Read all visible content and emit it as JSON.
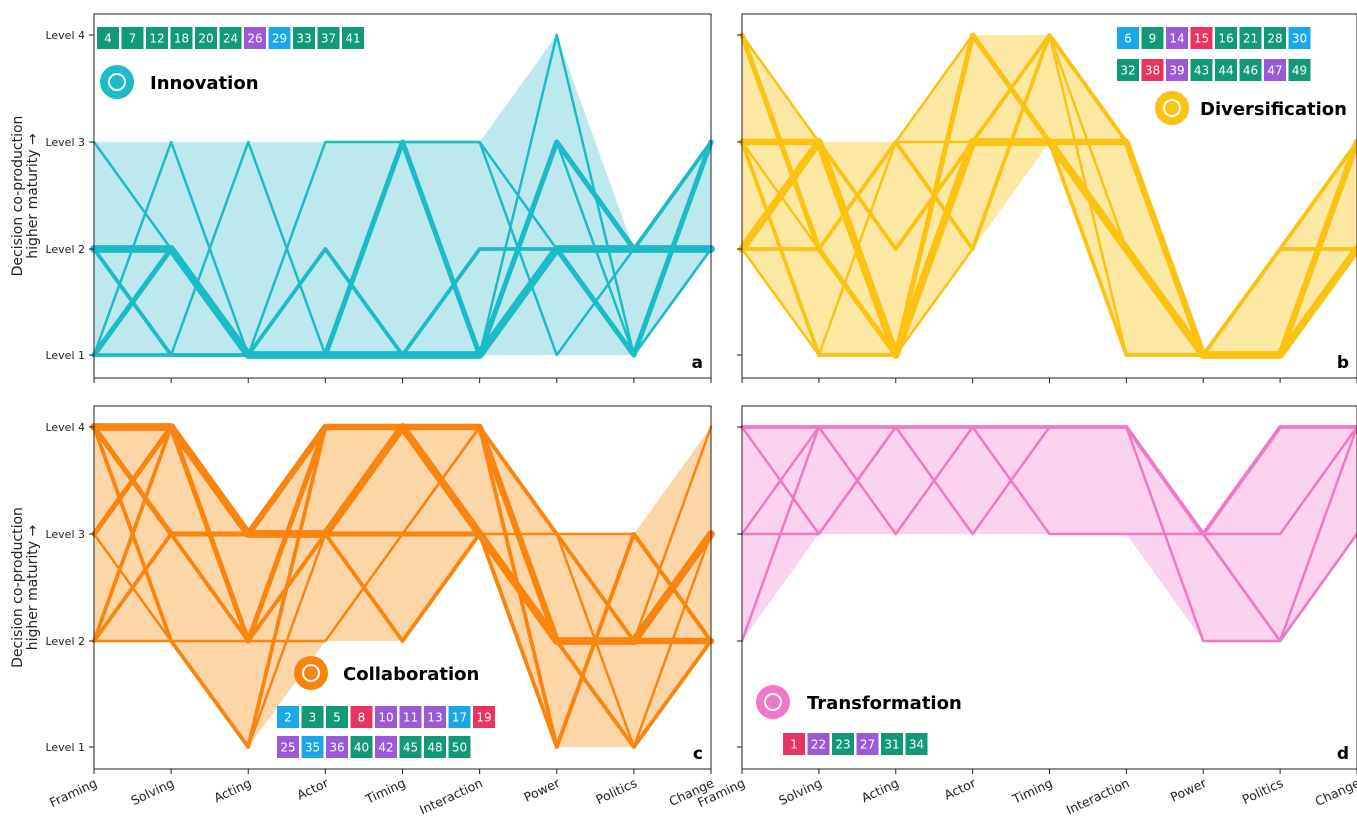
{
  "colors": {
    "teal": "#129a78",
    "purple": "#9b59d6",
    "blue": "#1aa7e8",
    "red": "#e8355f"
  },
  "chart_data": [
    {
      "type": "parallel-coordinates",
      "panel": "a",
      "name": "Innovation",
      "icon": "lightbulb-head-icon",
      "color": "#1bbbc8",
      "fill": "#bde9ee",
      "ylabel": "Decision co-production\nhigher maturity →",
      "ytick_labels": [
        "Level 1",
        "Level 2",
        "Level 3",
        "Level 4"
      ],
      "ylim": [
        0.9,
        4.1
      ],
      "categories": [
        "Framing",
        "Solving",
        "Acting",
        "Actor",
        "Timing",
        "Interaction",
        "Power",
        "Politics",
        "Change"
      ],
      "cases": [
        {
          "id": "4",
          "color": "teal"
        },
        {
          "id": "7",
          "color": "teal"
        },
        {
          "id": "12",
          "color": "teal"
        },
        {
          "id": "18",
          "color": "teal"
        },
        {
          "id": "20",
          "color": "teal"
        },
        {
          "id": "24",
          "color": "teal"
        },
        {
          "id": "26",
          "color": "purple"
        },
        {
          "id": "29",
          "color": "blue"
        },
        {
          "id": "33",
          "color": "teal"
        },
        {
          "id": "37",
          "color": "teal"
        },
        {
          "id": "41",
          "color": "teal"
        }
      ],
      "band": {
        "min": [
          1,
          1,
          1,
          1,
          1,
          1,
          1,
          1,
          2
        ],
        "max": [
          3,
          3,
          3,
          3,
          3,
          3,
          4,
          2,
          3
        ]
      },
      "series": [
        {
          "values": [
            2,
            2,
            1,
            1,
            1,
            1,
            2,
            2,
            2
          ],
          "weight": 5
        },
        {
          "values": [
            2,
            2,
            1,
            1,
            1,
            1,
            3,
            2,
            2
          ],
          "weight": 3
        },
        {
          "values": [
            1,
            2,
            1,
            1,
            3,
            1,
            2,
            1,
            3
          ],
          "weight": 3
        },
        {
          "values": [
            2,
            1,
            1,
            1,
            3,
            1,
            3,
            2,
            3
          ],
          "weight": 2
        },
        {
          "values": [
            1,
            1,
            1,
            2,
            1,
            2,
            2,
            2,
            2
          ],
          "weight": 2
        },
        {
          "values": [
            3,
            2,
            1,
            1,
            1,
            1,
            3,
            1,
            2
          ],
          "weight": 1
        },
        {
          "values": [
            1,
            3,
            1,
            1,
            3,
            3,
            2,
            2,
            2
          ],
          "weight": 1
        },
        {
          "values": [
            2,
            1,
            3,
            1,
            1,
            2,
            2,
            2,
            3
          ],
          "weight": 1
        },
        {
          "values": [
            2,
            2,
            1,
            3,
            3,
            3,
            1,
            2,
            2
          ],
          "weight": 1
        },
        {
          "values": [
            1,
            2,
            1,
            1,
            1,
            1,
            4,
            1,
            2
          ],
          "weight": 1
        },
        {
          "values": [
            1,
            1,
            1,
            1,
            1,
            1,
            3,
            2,
            3
          ],
          "weight": 1
        }
      ]
    },
    {
      "type": "parallel-coordinates",
      "panel": "b",
      "name": "Diversification",
      "icon": "diversify-arrows-icon",
      "color": "#fcc212",
      "fill": "#fde8a3",
      "ytick_labels": [
        "Level 1",
        "Level 2",
        "Level 3",
        "Level 4"
      ],
      "ylim": [
        0.9,
        4.1
      ],
      "categories": [
        "Framing",
        "Solving",
        "Acting",
        "Actor",
        "Timing",
        "Interaction",
        "Power",
        "Politics",
        "Change"
      ],
      "cases": [
        {
          "id": "6",
          "color": "blue"
        },
        {
          "id": "9",
          "color": "teal"
        },
        {
          "id": "14",
          "color": "purple"
        },
        {
          "id": "15",
          "color": "red"
        },
        {
          "id": "16",
          "color": "teal"
        },
        {
          "id": "21",
          "color": "teal"
        },
        {
          "id": "28",
          "color": "teal"
        },
        {
          "id": "30",
          "color": "blue"
        },
        {
          "id": "32",
          "color": "teal"
        },
        {
          "id": "38",
          "color": "red"
        },
        {
          "id": "39",
          "color": "purple"
        },
        {
          "id": "43",
          "color": "teal"
        },
        {
          "id": "44",
          "color": "teal"
        },
        {
          "id": "46",
          "color": "teal"
        },
        {
          "id": "47",
          "color": "purple"
        },
        {
          "id": "49",
          "color": "teal"
        }
      ],
      "band": {
        "min": [
          2,
          1,
          1,
          2,
          3,
          1,
          1,
          1,
          2
        ],
        "max": [
          4,
          3,
          3,
          4,
          4,
          3,
          1,
          2,
          3
        ]
      },
      "series": [
        {
          "values": [
            2,
            3,
            1,
            3,
            3,
            2,
            1,
            1,
            2
          ],
          "weight": 5
        },
        {
          "values": [
            3,
            3,
            1,
            3,
            3,
            3,
            1,
            1,
            3
          ],
          "weight": 4
        },
        {
          "values": [
            4,
            2,
            1,
            4,
            3,
            2,
            1,
            1,
            2
          ],
          "weight": 3
        },
        {
          "values": [
            2,
            3,
            2,
            3,
            4,
            3,
            1,
            2,
            3
          ],
          "weight": 2
        },
        {
          "values": [
            3,
            1,
            1,
            4,
            3,
            1,
            1,
            2,
            2
          ],
          "weight": 2
        },
        {
          "values": [
            2,
            2,
            3,
            2,
            4,
            3,
            1,
            1,
            3
          ],
          "weight": 2
        },
        {
          "values": [
            4,
            3,
            1,
            3,
            3,
            3,
            1,
            1,
            2
          ],
          "weight": 1
        },
        {
          "values": [
            3,
            2,
            3,
            4,
            3,
            2,
            1,
            1,
            3
          ],
          "weight": 1
        },
        {
          "values": [
            2,
            1,
            3,
            3,
            4,
            1,
            1,
            2,
            2
          ],
          "weight": 1
        },
        {
          "values": [
            3,
            3,
            1,
            2,
            4,
            2,
            1,
            1,
            3
          ],
          "weight": 1
        },
        {
          "values": [
            2,
            3,
            1,
            3,
            3,
            3,
            1,
            1,
            3
          ],
          "weight": 1
        }
      ]
    },
    {
      "type": "parallel-coordinates",
      "panel": "c",
      "name": "Collaboration",
      "icon": "hands-together-icon",
      "color": "#f9840f",
      "fill": "#fdd6a8",
      "ylabel": "Decision co-production\nhigher maturity →",
      "ytick_labels": [
        "Level 1",
        "Level 2",
        "Level 3",
        "Level 4"
      ],
      "ylim": [
        0.9,
        4.1
      ],
      "categories": [
        "Framing",
        "Solving",
        "Acting",
        "Actor",
        "Timing",
        "Interaction",
        "Power",
        "Politics",
        "Change"
      ],
      "cases": [
        {
          "id": "2",
          "color": "blue"
        },
        {
          "id": "3",
          "color": "teal"
        },
        {
          "id": "5",
          "color": "teal"
        },
        {
          "id": "8",
          "color": "red"
        },
        {
          "id": "10",
          "color": "purple"
        },
        {
          "id": "11",
          "color": "purple"
        },
        {
          "id": "13",
          "color": "purple"
        },
        {
          "id": "17",
          "color": "blue"
        },
        {
          "id": "19",
          "color": "red"
        },
        {
          "id": "25",
          "color": "purple"
        },
        {
          "id": "35",
          "color": "blue"
        },
        {
          "id": "36",
          "color": "purple"
        },
        {
          "id": "40",
          "color": "teal"
        },
        {
          "id": "42",
          "color": "purple"
        },
        {
          "id": "45",
          "color": "teal"
        },
        {
          "id": "48",
          "color": "teal"
        },
        {
          "id": "50",
          "color": "teal"
        }
      ],
      "band": {
        "min": [
          2,
          2,
          1,
          2,
          2,
          3,
          1,
          1,
          2
        ],
        "max": [
          4,
          4,
          3,
          4,
          4,
          4,
          3,
          3,
          4
        ]
      },
      "series": [
        {
          "values": [
            4,
            4,
            3,
            3,
            4,
            3,
            2,
            2,
            3
          ],
          "weight": 5
        },
        {
          "values": [
            4,
            4,
            3,
            4,
            4,
            4,
            2,
            2,
            2
          ],
          "weight": 4
        },
        {
          "values": [
            4,
            3,
            3,
            3,
            3,
            3,
            2,
            2,
            3
          ],
          "weight": 3
        },
        {
          "values": [
            3,
            4,
            2,
            4,
            4,
            3,
            2,
            2,
            2
          ],
          "weight": 3
        },
        {
          "values": [
            4,
            3,
            3,
            4,
            4,
            4,
            1,
            3,
            2
          ],
          "weight": 2
        },
        {
          "values": [
            2,
            4,
            2,
            3,
            4,
            3,
            2,
            1,
            2
          ],
          "weight": 2
        },
        {
          "values": [
            4,
            2,
            1,
            4,
            4,
            4,
            3,
            2,
            3
          ],
          "weight": 2
        },
        {
          "values": [
            3,
            4,
            3,
            3,
            2,
            3,
            2,
            2,
            2
          ],
          "weight": 2
        },
        {
          "values": [
            2,
            3,
            2,
            3,
            4,
            3,
            1,
            3,
            2
          ],
          "weight": 2
        },
        {
          "values": [
            4,
            4,
            3,
            3,
            3,
            4,
            3,
            1,
            2
          ],
          "weight": 1
        },
        {
          "values": [
            2,
            2,
            2,
            2,
            3,
            4,
            2,
            2,
            4
          ],
          "weight": 1
        },
        {
          "values": [
            4,
            3,
            2,
            3,
            3,
            3,
            2,
            1,
            3
          ],
          "weight": 1
        },
        {
          "values": [
            3,
            2,
            1,
            3,
            3,
            3,
            3,
            3,
            2
          ],
          "weight": 1
        }
      ]
    },
    {
      "type": "parallel-coordinates",
      "panel": "d",
      "name": "Transformation",
      "icon": "shuffle-gear-icon",
      "color": "#f177c7",
      "fill": "#fbd3ee",
      "ytick_labels": [
        "Level 1",
        "Level 2",
        "Level 3",
        "Level 4"
      ],
      "ylim": [
        0.9,
        4.1
      ],
      "categories": [
        "Framing",
        "Solving",
        "Acting",
        "Actor",
        "Timing",
        "Interaction",
        "Power",
        "Politics",
        "Change"
      ],
      "cases": [
        {
          "id": "1",
          "color": "red"
        },
        {
          "id": "22",
          "color": "purple"
        },
        {
          "id": "23",
          "color": "teal"
        },
        {
          "id": "27",
          "color": "purple"
        },
        {
          "id": "31",
          "color": "teal"
        },
        {
          "id": "34",
          "color": "teal"
        }
      ],
      "band": {
        "min": [
          2,
          3,
          3,
          3,
          3,
          3,
          2,
          2,
          3
        ],
        "max": [
          4,
          4,
          4,
          4,
          4,
          4,
          3,
          4,
          4
        ]
      },
      "series": [
        {
          "values": [
            4,
            4,
            4,
            4,
            4,
            4,
            3,
            4,
            4
          ],
          "weight": 2
        },
        {
          "values": [
            3,
            3,
            4,
            4,
            4,
            4,
            3,
            3,
            4
          ],
          "weight": 1
        },
        {
          "values": [
            4,
            3,
            4,
            3,
            4,
            4,
            3,
            2,
            4
          ],
          "weight": 1
        },
        {
          "values": [
            2,
            4,
            4,
            4,
            4,
            4,
            2,
            2,
            3
          ],
          "weight": 1
        },
        {
          "values": [
            4,
            4,
            3,
            4,
            3,
            3,
            3,
            4,
            4
          ],
          "weight": 1
        },
        {
          "values": [
            3,
            4,
            4,
            4,
            4,
            4,
            3,
            2,
            3
          ],
          "weight": 1
        }
      ]
    }
  ]
}
